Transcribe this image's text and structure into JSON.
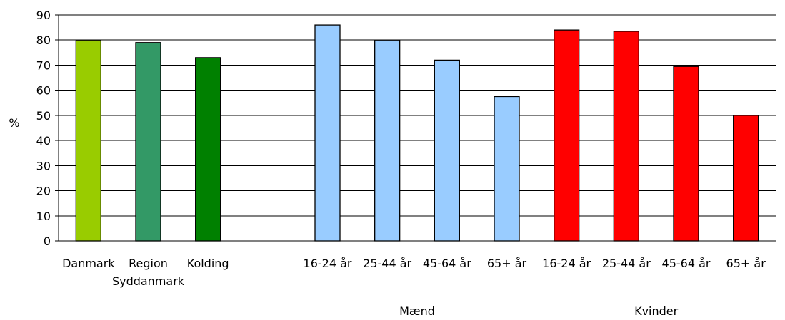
{
  "chart_data": {
    "type": "bar",
    "ylabel": "%",
    "ylim": [
      0,
      90
    ],
    "yticks": [
      0,
      10,
      20,
      30,
      40,
      50,
      60,
      70,
      80,
      90
    ],
    "grid": true,
    "categories": [
      {
        "label": "Danmark",
        "value": 80,
        "color": "#99cc00"
      },
      {
        "label": "Region Syddanmark",
        "lines": [
          "Region",
          "Syddanmark"
        ],
        "value": 79,
        "color": "#339966"
      },
      {
        "label": "Kolding",
        "value": 73,
        "color": "#008000"
      },
      {
        "label": "16-24 år",
        "value": 86,
        "color": "#99ccff",
        "group": "Mænd"
      },
      {
        "label": "25-44 år",
        "value": 80,
        "color": "#99ccff",
        "group": "Mænd"
      },
      {
        "label": "45-64 år",
        "value": 72,
        "color": "#99ccff",
        "group": "Mænd"
      },
      {
        "label": "65+ år",
        "value": 57.5,
        "color": "#99ccff",
        "group": "Mænd"
      },
      {
        "label": "16-24 år",
        "value": 84,
        "color": "#ff0000",
        "group": "Kvinder"
      },
      {
        "label": "25-44 år",
        "value": 83.5,
        "color": "#ff0000",
        "group": "Kvinder"
      },
      {
        "label": "45-64 år",
        "value": 69.5,
        "color": "#ff0000",
        "group": "Kvinder"
      },
      {
        "label": "65+ år",
        "value": 50,
        "color": "#ff0000",
        "group": "Kvinder"
      }
    ],
    "groups": [
      "Mænd",
      "Kvinder"
    ]
  }
}
